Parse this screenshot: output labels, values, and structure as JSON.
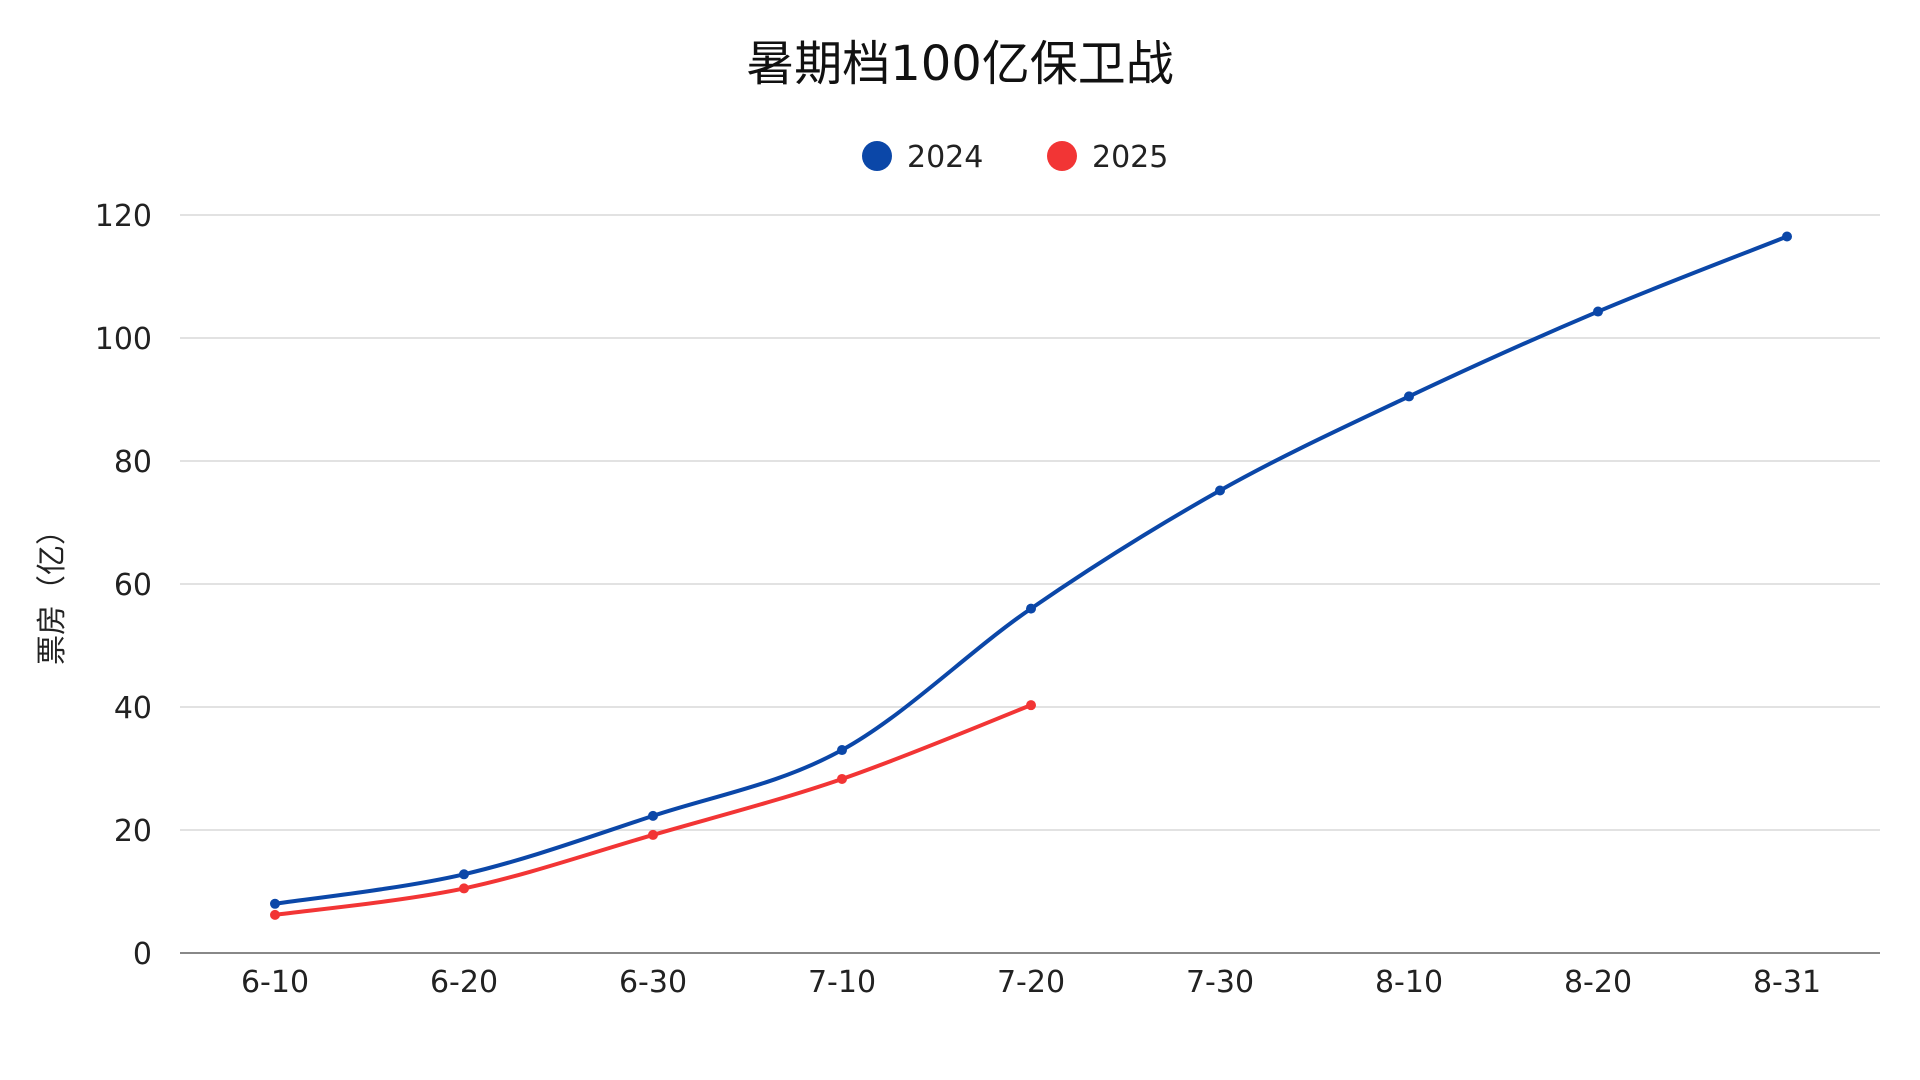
{
  "chart_data": {
    "type": "line",
    "title": "暑期档100亿保卫战",
    "xlabel": "",
    "ylabel": "票房（亿）",
    "ylim": [
      0,
      120
    ],
    "yticks": [
      0,
      20,
      40,
      60,
      80,
      100,
      120
    ],
    "categories": [
      "6-10",
      "6-20",
      "6-30",
      "7-10",
      "7-20",
      "7-30",
      "8-10",
      "8-20",
      "8-31"
    ],
    "grid": true,
    "legend_position": "top-center",
    "series": [
      {
        "name": "2024",
        "color": "#0b47a8",
        "values": [
          8.0,
          12.8,
          22.3,
          33.0,
          56.0,
          75.2,
          90.5,
          104.3,
          116.5
        ]
      },
      {
        "name": "2025",
        "color": "#f23535",
        "values": [
          6.2,
          10.5,
          19.2,
          28.3,
          40.3,
          null,
          null,
          null,
          null
        ]
      }
    ]
  }
}
